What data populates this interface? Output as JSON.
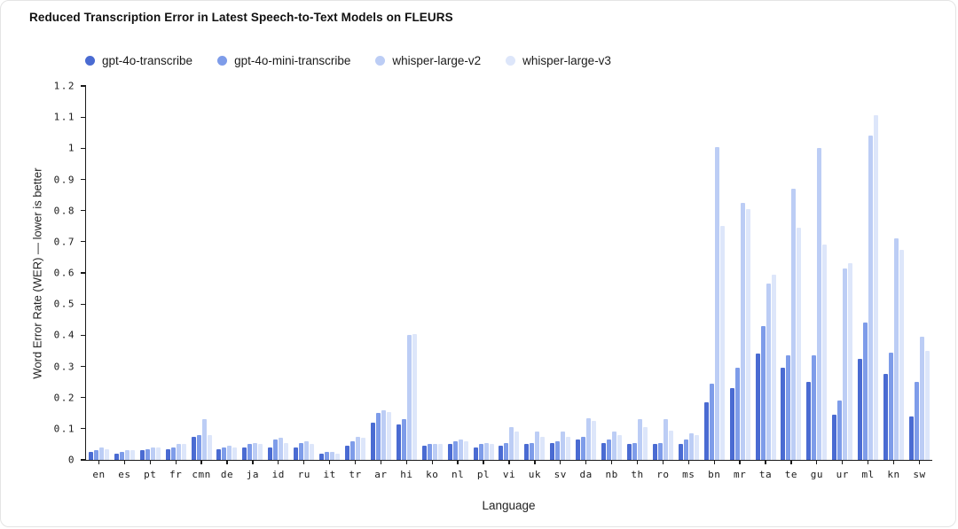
{
  "title": "Reduced Transcription Error in Latest Speech-to-Text Models on FLEURS",
  "chart_data": {
    "type": "bar",
    "title": "Reduced Transcription Error in Latest Speech-to-Text Models on FLEURS",
    "xlabel": "Language",
    "ylabel": "Word Error Rate (WER) — lower is better",
    "ylim": [
      0,
      1.2
    ],
    "ytick_step": 0.1,
    "grid": false,
    "legend_position": "top-left",
    "categories": [
      "en",
      "es",
      "pt",
      "fr",
      "cmn",
      "de",
      "ja",
      "id",
      "ru",
      "it",
      "tr",
      "ar",
      "hi",
      "ko",
      "nl",
      "pl",
      "vi",
      "uk",
      "sv",
      "da",
      "nb",
      "th",
      "ro",
      "ms",
      "bn",
      "mr",
      "ta",
      "te",
      "gu",
      "ur",
      "ml",
      "kn",
      "sw"
    ],
    "series": [
      {
        "name": "gpt-4o-transcribe",
        "color": "#4a6bd2",
        "values": [
          0.025,
          0.02,
          0.03,
          0.035,
          0.075,
          0.035,
          0.04,
          0.04,
          0.04,
          0.02,
          0.045,
          0.12,
          0.115,
          0.045,
          0.05,
          0.04,
          0.045,
          0.05,
          0.055,
          0.065,
          0.055,
          0.05,
          0.05,
          0.05,
          0.185,
          0.23,
          0.34,
          0.295,
          0.25,
          0.145,
          0.325,
          0.275,
          0.14
        ]
      },
      {
        "name": "gpt-4o-mini-transcribe",
        "color": "#7e9ce9",
        "values": [
          0.03,
          0.025,
          0.035,
          0.04,
          0.08,
          0.04,
          0.05,
          0.065,
          0.055,
          0.025,
          0.06,
          0.15,
          0.13,
          0.05,
          0.06,
          0.05,
          0.055,
          0.055,
          0.06,
          0.075,
          0.065,
          0.055,
          0.055,
          0.065,
          0.245,
          0.295,
          0.43,
          0.335,
          0.335,
          0.19,
          0.44,
          0.345,
          0.25
        ]
      },
      {
        "name": "whisper-large-v2",
        "color": "#bccdf5",
        "values": [
          0.04,
          0.03,
          0.04,
          0.05,
          0.13,
          0.045,
          0.055,
          0.07,
          0.06,
          0.025,
          0.075,
          0.16,
          0.4,
          0.05,
          0.065,
          0.055,
          0.105,
          0.09,
          0.09,
          0.135,
          0.09,
          0.13,
          0.13,
          0.085,
          1.005,
          0.825,
          0.565,
          0.87,
          1.0,
          0.615,
          1.04,
          0.71,
          0.395
        ]
      },
      {
        "name": "whisper-large-v3",
        "color": "#dde6fa",
        "values": [
          0.035,
          0.03,
          0.04,
          0.05,
          0.08,
          0.04,
          0.05,
          0.055,
          0.05,
          0.02,
          0.07,
          0.155,
          0.405,
          0.05,
          0.06,
          0.05,
          0.09,
          0.075,
          0.075,
          0.125,
          0.08,
          0.105,
          0.095,
          0.08,
          0.75,
          0.805,
          0.595,
          0.745,
          0.69,
          0.63,
          1.105,
          0.675,
          0.35
        ]
      }
    ]
  }
}
